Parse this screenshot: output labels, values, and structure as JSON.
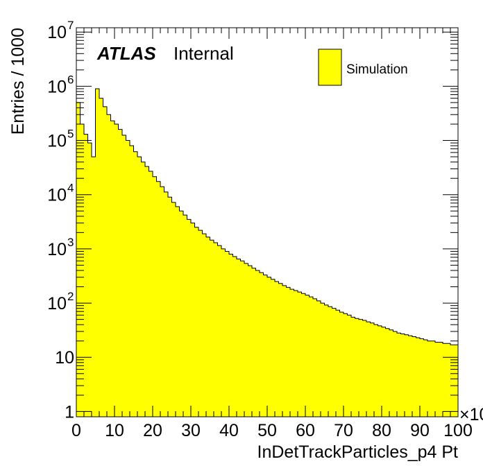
{
  "chart_data": {
    "type": "bar",
    "style": "filled-step-histogram",
    "xlabel": "InDetTrackParticles_p4 Pt",
    "ylabel": "Entries / 1000",
    "x_multiplier_label": "×10",
    "x_range": [
      0,
      100
    ],
    "y_range": [
      0.8,
      12000000
    ],
    "y_scale": "log",
    "grid": false,
    "legend_position": "top-right",
    "fill_color": "#ffff00",
    "line_color": "#000000",
    "atlas_label": "ATLAS",
    "atlas_status": "Internal",
    "legend": [
      {
        "label": "Simulation",
        "color": "#ffff00"
      }
    ],
    "x_ticks": [
      0,
      10,
      20,
      30,
      40,
      50,
      60,
      70,
      80,
      90,
      100
    ],
    "y_ticks": [
      {
        "value": 1,
        "base": "1",
        "exp": ""
      },
      {
        "value": 10,
        "base": "10",
        "exp": ""
      },
      {
        "value": 100,
        "base": "10",
        "exp": "2"
      },
      {
        "value": 1000,
        "base": "10",
        "exp": "3"
      },
      {
        "value": 10000,
        "base": "10",
        "exp": "4"
      },
      {
        "value": 100000,
        "base": "10",
        "exp": "5"
      },
      {
        "value": 1000000,
        "base": "10",
        "exp": "6"
      },
      {
        "value": 10000000,
        "base": "10",
        "exp": "7"
      }
    ],
    "bin_edges_start": 0,
    "bin_width": 1,
    "values": [
      500000,
      200000,
      130000,
      90000,
      50000,
      900000,
      600000,
      420000,
      300000,
      230000,
      200000,
      160000,
      125000,
      100000,
      80000,
      62000,
      50000,
      40000,
      33000,
      27000,
      21500,
      17500,
      14000,
      11200,
      9000,
      7200,
      6000,
      5000,
      4200,
      3500,
      3000,
      2500,
      2200,
      1900,
      1650,
      1450,
      1300,
      1150,
      1000,
      900,
      800,
      720,
      650,
      600,
      540,
      490,
      440,
      400,
      365,
      330,
      300,
      275,
      250,
      230,
      210,
      195,
      180,
      170,
      160,
      150,
      140,
      130,
      120,
      110,
      100,
      92,
      86,
      80,
      74,
      68,
      64,
      60,
      55,
      52,
      50,
      48,
      45,
      43,
      40,
      38,
      36,
      34,
      32,
      30,
      28,
      27,
      26,
      25,
      24,
      23,
      22,
      21,
      20,
      20,
      19,
      19,
      18,
      18,
      17,
      17
    ]
  }
}
